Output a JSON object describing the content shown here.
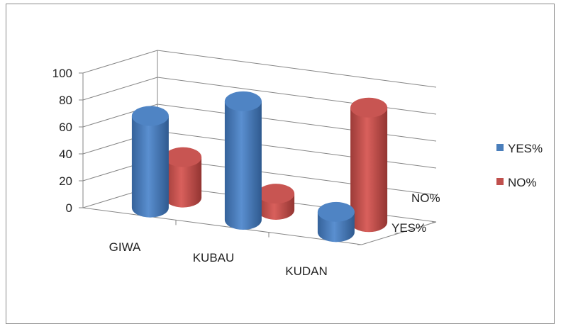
{
  "chart_data": {
    "type": "bar",
    "subtype": "3d-cylinder",
    "categories": [
      "GIWA",
      "KUBAU",
      "KUDAN"
    ],
    "series": [
      {
        "name": "YES%",
        "values": [
          68,
          88,
          15
        ]
      },
      {
        "name": "NO%",
        "values": [
          30,
          12,
          85
        ]
      }
    ],
    "depth_labels": [
      "YES%",
      "NO%"
    ],
    "yticks": [
      "0",
      "20",
      "40",
      "60",
      "80",
      "100"
    ],
    "ylim": [
      0,
      100
    ],
    "grid": true,
    "legend_position": "right",
    "colors": {
      "yes": "#4a7ebb",
      "no": "#c0504d"
    }
  }
}
